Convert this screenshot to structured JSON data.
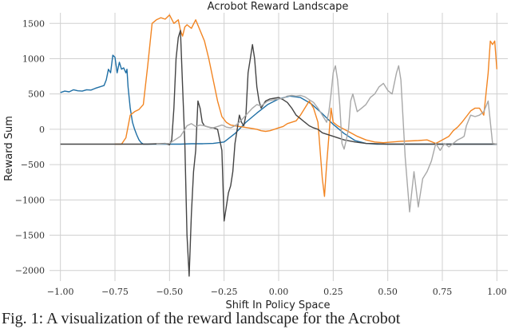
{
  "chart_data": {
    "type": "line",
    "title": "Acrobot Reward Landscape",
    "xlabel": "Shift In Policy Space",
    "ylabel": "Reward Sum",
    "xlim": [
      -1.05,
      1.05
    ],
    "ylim": [
      -2150,
      1650
    ],
    "xticks": [
      -1.0,
      -0.75,
      -0.5,
      -0.25,
      0.0,
      0.25,
      0.5,
      0.75,
      1.0
    ],
    "xtick_labels": [
      "−1.00",
      "−0.75",
      "−0.50",
      "−0.25",
      "0.00",
      "0.25",
      "0.50",
      "0.75",
      "1.00"
    ],
    "yticks": [
      -2000,
      -1500,
      -1000,
      -500,
      0,
      500,
      1000,
      1500
    ],
    "ytick_labels": [
      "−2000",
      "−1500",
      "−1000",
      "−500",
      "0",
      "500",
      "1000",
      "1500"
    ],
    "grid": true,
    "series": [
      {
        "color": "#1f6fa5",
        "x": [
          -1.0,
          -0.98,
          -0.96,
          -0.94,
          -0.92,
          -0.9,
          -0.88,
          -0.86,
          -0.84,
          -0.82,
          -0.8,
          -0.79,
          -0.78,
          -0.77,
          -0.76,
          -0.75,
          -0.74,
          -0.73,
          -0.72,
          -0.71,
          -0.7,
          -0.695,
          -0.69,
          -0.68,
          -0.67,
          -0.66,
          -0.65,
          -0.64,
          -0.63,
          -0.62,
          -0.6,
          -0.55,
          -0.5,
          -0.45,
          -0.4,
          -0.35,
          -0.3,
          -0.25,
          -0.2,
          -0.15,
          -0.1,
          -0.05,
          0.0,
          0.05,
          0.1,
          0.15,
          0.2,
          0.25,
          0.3,
          0.35,
          0.4,
          0.45,
          0.5,
          0.55,
          0.6,
          0.65,
          0.7,
          0.75,
          0.8,
          0.85,
          0.9,
          0.95,
          1.0
        ],
        "y": [
          520,
          540,
          530,
          560,
          545,
          540,
          560,
          555,
          580,
          600,
          620,
          700,
          850,
          800,
          1050,
          1020,
          800,
          950,
          850,
          870,
          800,
          850,
          600,
          300,
          100,
          0,
          -80,
          -150,
          -190,
          -210,
          -210,
          -210,
          -210,
          -210,
          -205,
          -205,
          -200,
          -180,
          -60,
          100,
          230,
          350,
          430,
          470,
          450,
          360,
          220,
          70,
          -60,
          -160,
          -200,
          -210,
          -210,
          -210,
          -210,
          -210,
          -210,
          -210,
          -210,
          -210,
          -210,
          -210,
          -210
        ]
      },
      {
        "color": "#f28522",
        "x": [
          -0.75,
          -0.73,
          -0.72,
          -0.7,
          -0.68,
          -0.66,
          -0.64,
          -0.62,
          -0.6,
          -0.58,
          -0.56,
          -0.54,
          -0.52,
          -0.5,
          -0.48,
          -0.46,
          -0.45,
          -0.44,
          -0.43,
          -0.42,
          -0.4,
          -0.38,
          -0.36,
          -0.34,
          -0.32,
          -0.3,
          -0.28,
          -0.26,
          -0.24,
          -0.22,
          -0.2,
          -0.18,
          -0.16,
          -0.14,
          -0.12,
          -0.1,
          -0.08,
          -0.06,
          -0.04,
          -0.02,
          0.0,
          0.02,
          0.04,
          0.06,
          0.08,
          0.1,
          0.12,
          0.14,
          0.16,
          0.18,
          0.2,
          0.21,
          0.22,
          0.23,
          0.24,
          0.25,
          0.27,
          0.3,
          0.33,
          0.36,
          0.4,
          0.44,
          0.48,
          0.52,
          0.56,
          0.6,
          0.64,
          0.68,
          0.72,
          0.75,
          0.78,
          0.8,
          0.82,
          0.84,
          0.86,
          0.88,
          0.9,
          0.92,
          0.94,
          0.96,
          0.97,
          0.98,
          0.99,
          1.0
        ],
        "y": [
          -210,
          -210,
          -210,
          -120,
          200,
          250,
          280,
          350,
          900,
          1500,
          1550,
          1580,
          1560,
          1620,
          1500,
          1550,
          1400,
          1320,
          1450,
          1480,
          1430,
          1550,
          1400,
          1250,
          1000,
          700,
          400,
          180,
          100,
          60,
          50,
          40,
          30,
          20,
          10,
          0,
          -20,
          -30,
          -20,
          0,
          20,
          40,
          80,
          100,
          120,
          200,
          300,
          400,
          300,
          100,
          -700,
          -950,
          -500,
          -100,
          300,
          100,
          50,
          0,
          -50,
          -100,
          -150,
          -180,
          -190,
          -180,
          -170,
          -165,
          -160,
          -150,
          -200,
          -150,
          -100,
          -20,
          30,
          100,
          180,
          260,
          300,
          300,
          200,
          800,
          1250,
          1200,
          1250,
          850
        ]
      },
      {
        "color": "#444444",
        "x": [
          -1.0,
          -0.9,
          -0.8,
          -0.7,
          -0.6,
          -0.55,
          -0.52,
          -0.5,
          -0.49,
          -0.48,
          -0.47,
          -0.46,
          -0.45,
          -0.44,
          -0.43,
          -0.42,
          -0.41,
          -0.4,
          -0.39,
          -0.38,
          -0.37,
          -0.36,
          -0.35,
          -0.34,
          -0.33,
          -0.32,
          -0.31,
          -0.3,
          -0.28,
          -0.26,
          -0.25,
          -0.24,
          -0.23,
          -0.22,
          -0.21,
          -0.2,
          -0.19,
          -0.18,
          -0.17,
          -0.16,
          -0.15,
          -0.14,
          -0.13,
          -0.12,
          -0.11,
          -0.1,
          -0.09,
          -0.08,
          -0.07,
          -0.06,
          -0.04,
          -0.02,
          0.0,
          0.02,
          0.04,
          0.06,
          0.08,
          0.1,
          0.12,
          0.14,
          0.16,
          0.18,
          0.2,
          0.25,
          0.3,
          0.35,
          0.4,
          0.45,
          0.5,
          0.55,
          0.6,
          0.65,
          0.7,
          0.75,
          0.8,
          0.85,
          0.9,
          0.95,
          1.0
        ],
        "y": [
          -210,
          -210,
          -210,
          -210,
          -210,
          -205,
          -200,
          -220,
          -150,
          300,
          1000,
          1300,
          1400,
          600,
          -200,
          -1500,
          -2080,
          -1200,
          -600,
          -300,
          400,
          300,
          100,
          50,
          40,
          30,
          20,
          20,
          0,
          -300,
          -1300,
          -1100,
          -900,
          -800,
          -600,
          -200,
          0,
          200,
          100,
          50,
          200,
          800,
          1000,
          1200,
          1000,
          600,
          400,
          300,
          350,
          400,
          430,
          440,
          450,
          420,
          380,
          300,
          200,
          150,
          100,
          50,
          20,
          0,
          -50,
          -100,
          -150,
          -180,
          -200,
          -205,
          -210,
          -210,
          -210,
          -210,
          -210,
          -210,
          -210,
          -210,
          -210,
          -210,
          -210
        ]
      },
      {
        "color": "#a8a8a8",
        "x": [
          -0.56,
          -0.5,
          -0.45,
          -0.43,
          -0.42,
          -0.4,
          -0.38,
          -0.36,
          -0.34,
          -0.32,
          -0.3,
          -0.28,
          -0.26,
          -0.25,
          -0.24,
          -0.22,
          -0.2,
          -0.18,
          -0.15,
          -0.12,
          -0.1,
          -0.08,
          -0.05,
          -0.02,
          0.0,
          0.02,
          0.04,
          0.06,
          0.08,
          0.1,
          0.12,
          0.14,
          0.16,
          0.18,
          0.2,
          0.22,
          0.23,
          0.24,
          0.25,
          0.26,
          0.27,
          0.28,
          0.29,
          0.3,
          0.31,
          0.32,
          0.33,
          0.34,
          0.36,
          0.38,
          0.4,
          0.42,
          0.44,
          0.46,
          0.48,
          0.5,
          0.52,
          0.54,
          0.55,
          0.56,
          0.58,
          0.6,
          0.62,
          0.64,
          0.66,
          0.68,
          0.7,
          0.72,
          0.74,
          0.76,
          0.78,
          0.8,
          0.82,
          0.84,
          0.85,
          0.86,
          0.88,
          0.9,
          0.92,
          0.94,
          0.96,
          0.98,
          1.0
        ],
        "y": [
          -210,
          -200,
          -100,
          0,
          50,
          80,
          40,
          60,
          50,
          30,
          20,
          40,
          60,
          50,
          30,
          20,
          50,
          100,
          200,
          300,
          350,
          330,
          400,
          420,
          430,
          440,
          470,
          480,
          470,
          480,
          460,
          420,
          380,
          300,
          200,
          100,
          250,
          500,
          800,
          900,
          700,
          350,
          -200,
          -280,
          -150,
          0,
          400,
          500,
          250,
          300,
          350,
          450,
          500,
          600,
          650,
          550,
          500,
          800,
          900,
          700,
          -400,
          -1170,
          -600,
          -1100,
          -700,
          -600,
          -450,
          -200,
          -300,
          -200,
          -250,
          -200,
          -150,
          -120,
          -100,
          50,
          200,
          180,
          200,
          250,
          400,
          -200,
          -210
        ]
      }
    ]
  },
  "caption": "Fig. 1: A visualization of the reward landscape for the Acrobot"
}
